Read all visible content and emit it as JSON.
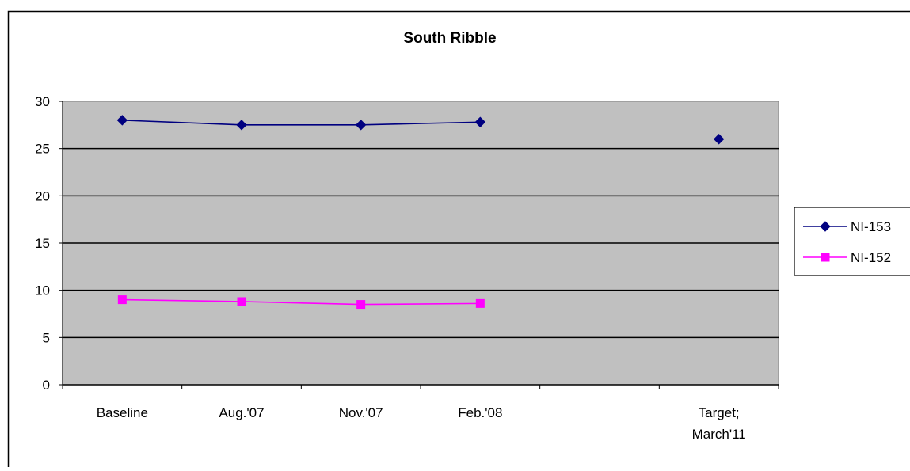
{
  "chart_data": {
    "type": "line",
    "title": "South Ribble",
    "categories": [
      [
        "Baseline"
      ],
      [
        "Aug.'07"
      ],
      [
        "Nov.'07"
      ],
      [
        "Feb.'08"
      ],
      [
        ""
      ],
      [
        "Target;",
        "March'11"
      ]
    ],
    "ylim": [
      0,
      30
    ],
    "yticks": [
      0,
      5,
      10,
      15,
      20,
      25,
      30
    ],
    "grid": true,
    "plot_background": "#c0c0c0",
    "legend_position": "right",
    "series": [
      {
        "name": "NI-153",
        "color": "#000080",
        "marker": "diamond",
        "values": [
          28.0,
          27.5,
          27.5,
          27.8,
          null,
          26.0
        ]
      },
      {
        "name": "NI-152",
        "color": "#ff00ff",
        "marker": "square",
        "values": [
          9.0,
          8.8,
          8.5,
          8.6,
          null,
          null
        ]
      }
    ]
  }
}
